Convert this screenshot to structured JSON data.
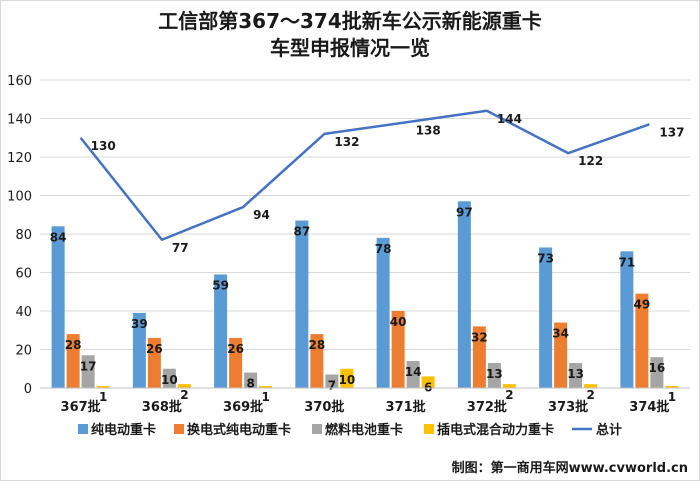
{
  "chart_data": {
    "type": "bar",
    "title_line1": "工信部第367～374批新车公示新能源重卡",
    "title_line2": "车型申报情况一览",
    "categories": [
      "367批",
      "368批",
      "369批",
      "370批",
      "371批",
      "372批",
      "373批",
      "374批"
    ],
    "series": [
      {
        "name": "纯电动重卡",
        "values": [
          84,
          39,
          59,
          87,
          78,
          97,
          73,
          71
        ],
        "color": "#5B9BD5"
      },
      {
        "name": "换电式纯电动重卡",
        "values": [
          28,
          26,
          26,
          28,
          40,
          32,
          34,
          49
        ],
        "color": "#ED7D31"
      },
      {
        "name": "燃料电池重卡",
        "values": [
          17,
          10,
          8,
          7,
          14,
          13,
          13,
          16
        ],
        "color": "#A5A5A5"
      },
      {
        "name": "插电式混合动力重卡",
        "values": [
          1,
          2,
          1,
          10,
          6,
          2,
          2,
          1
        ],
        "color": "#FFC000"
      }
    ],
    "line_series": {
      "name": "总计",
      "values": [
        130,
        77,
        94,
        132,
        138,
        144,
        122,
        137
      ],
      "color": "#4472C4"
    },
    "ylim": [
      0,
      160
    ],
    "yticks": [
      "0",
      "20",
      "40",
      "60",
      "80",
      "100",
      "120",
      "140",
      "160"
    ],
    "grid": true,
    "legend_position": "bottom",
    "credit": "制图：第一商用车网www.cvworld.cn"
  }
}
